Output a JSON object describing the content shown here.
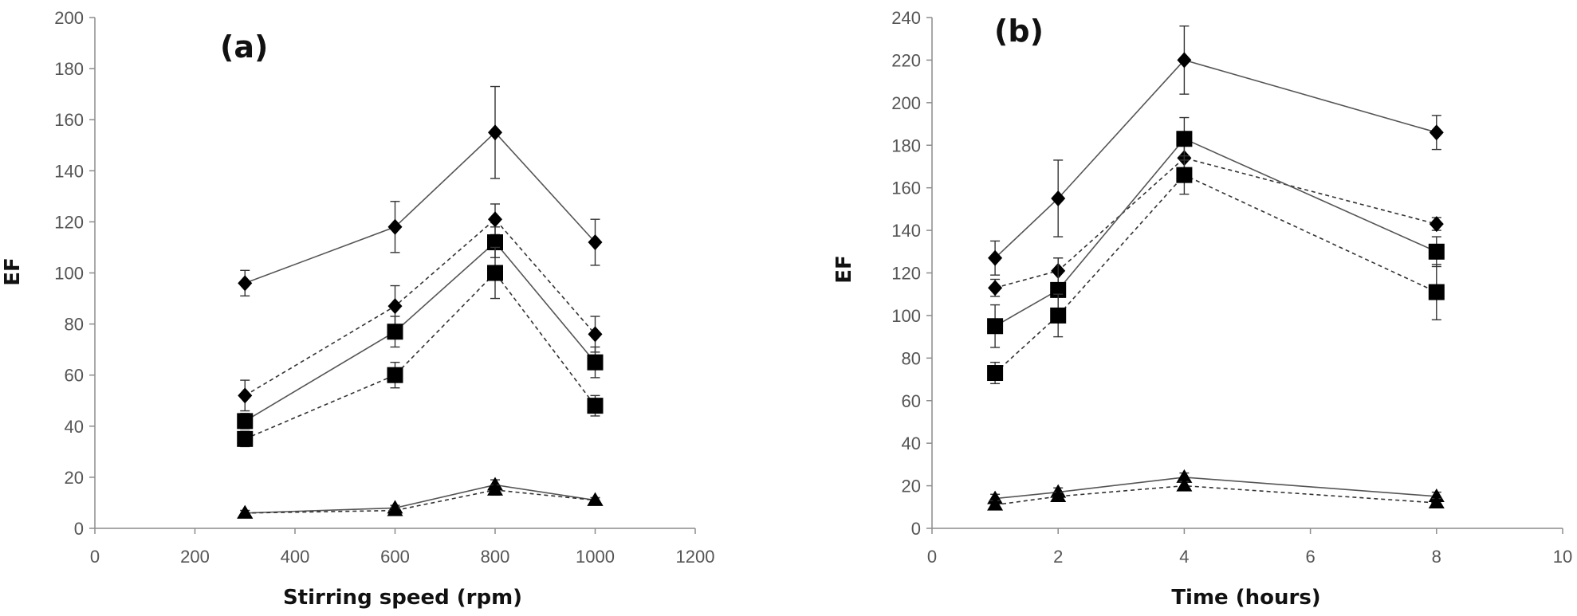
{
  "chart_data": [
    {
      "type": "line",
      "panel_label": "(a)",
      "title": "",
      "xlabel": "Stirring speed (rpm)",
      "ylabel": "EF",
      "xlim": [
        0,
        1200
      ],
      "ylim": [
        0,
        200
      ],
      "xticks": [
        0,
        200,
        400,
        600,
        800,
        1000,
        1200
      ],
      "yticks": [
        0,
        20,
        40,
        60,
        80,
        100,
        120,
        140,
        160,
        180,
        200
      ],
      "grid": false,
      "x": [
        300,
        600,
        800,
        1000
      ],
      "series": [
        {
          "name": "diamond-solid",
          "marker": "diamond",
          "style": "solid",
          "values": [
            96,
            118,
            155,
            112
          ],
          "errors": [
            5,
            10,
            18,
            9
          ]
        },
        {
          "name": "diamond-dashed",
          "marker": "diamond",
          "style": "dashed",
          "values": [
            52,
            87,
            121,
            76
          ],
          "errors": [
            6,
            8,
            6,
            7
          ]
        },
        {
          "name": "square-solid",
          "marker": "square",
          "style": "solid",
          "values": [
            42,
            77,
            112,
            65
          ],
          "errors": [
            3,
            6,
            6,
            6
          ]
        },
        {
          "name": "square-dashed",
          "marker": "square",
          "style": "dashed",
          "values": [
            35,
            60,
            100,
            48
          ],
          "errors": [
            3,
            5,
            10,
            4
          ]
        },
        {
          "name": "triangle-solid",
          "marker": "triangle",
          "style": "solid",
          "values": [
            6,
            8,
            17,
            11
          ],
          "errors": [
            1,
            1,
            2,
            1
          ]
        },
        {
          "name": "triangle-dashed",
          "marker": "triangle",
          "style": "dashed",
          "values": [
            6,
            7,
            15,
            11
          ],
          "errors": [
            1,
            1,
            2,
            1
          ]
        }
      ]
    },
    {
      "type": "line",
      "panel_label": "(b)",
      "title": "",
      "xlabel": "Time (hours)",
      "ylabel": "EF",
      "xlim": [
        0,
        10
      ],
      "ylim": [
        0,
        240
      ],
      "xticks": [
        0,
        2,
        4,
        6,
        8,
        10
      ],
      "yticks": [
        0,
        20,
        40,
        60,
        80,
        100,
        120,
        140,
        160,
        180,
        200,
        220,
        240
      ],
      "grid": false,
      "x": [
        1,
        2,
        4,
        8
      ],
      "series": [
        {
          "name": "diamond-solid",
          "marker": "diamond",
          "style": "solid",
          "values": [
            127,
            155,
            220,
            186
          ],
          "errors": [
            8,
            18,
            16,
            8
          ]
        },
        {
          "name": "diamond-dashed",
          "marker": "diamond",
          "style": "dashed",
          "values": [
            113,
            121,
            174,
            143
          ],
          "errors": [
            4,
            6,
            6,
            3
          ]
        },
        {
          "name": "square-solid",
          "marker": "square",
          "style": "solid",
          "values": [
            95,
            112,
            183,
            130
          ],
          "errors": [
            10,
            15,
            10,
            7
          ]
        },
        {
          "name": "square-dashed",
          "marker": "square",
          "style": "dashed",
          "values": [
            73,
            100,
            166,
            111
          ],
          "errors": [
            5,
            10,
            9,
            13
          ]
        },
        {
          "name": "triangle-solid",
          "marker": "triangle",
          "style": "solid",
          "values": [
            14,
            17,
            24,
            15
          ],
          "errors": [
            2,
            2,
            2,
            2
          ]
        },
        {
          "name": "triangle-dashed",
          "marker": "triangle",
          "style": "dashed",
          "values": [
            11,
            15,
            20,
            12
          ],
          "errors": [
            2,
            2,
            2,
            2
          ]
        }
      ]
    }
  ]
}
